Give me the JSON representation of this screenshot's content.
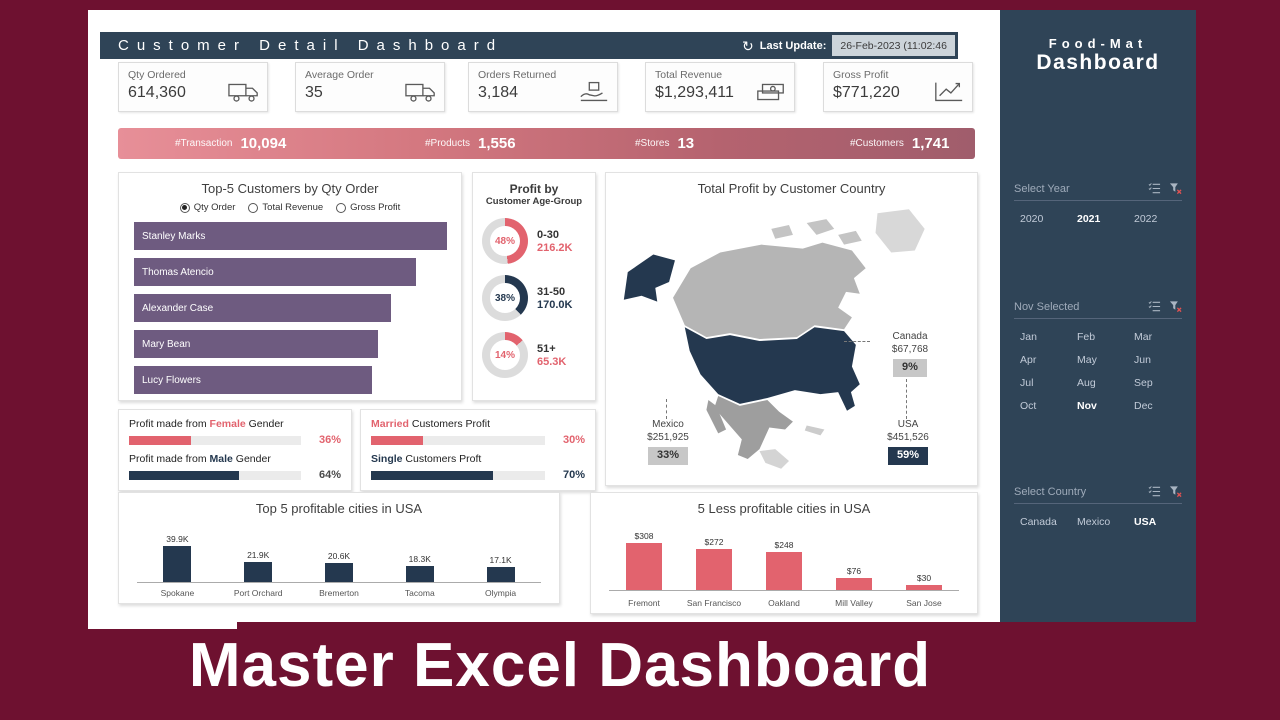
{
  "banner": {
    "caption": "Master Excel Dashboard"
  },
  "header": {
    "title": "Customer Detail Dashboard",
    "last_update_label": "Last Update:",
    "last_update_value": "26-Feb-2023 (11:02:46"
  },
  "kpis": [
    {
      "label": "Qty Ordered",
      "value": "614,360",
      "icon": "delivery-truck-icon"
    },
    {
      "label": "Average Order",
      "value": "35",
      "icon": "shipping-truck-icon"
    },
    {
      "label": "Orders Returned",
      "value": "3,184",
      "icon": "return-hand-icon"
    },
    {
      "label": "Total Revenue",
      "value": "$1,293,411",
      "icon": "revenue-cash-icon"
    },
    {
      "label": "Gross Profit",
      "value": "$771,220",
      "icon": "profit-chart-icon"
    }
  ],
  "stats_band": [
    {
      "label": "#Transaction",
      "value": "10,094"
    },
    {
      "label": "#Products",
      "value": "1,556"
    },
    {
      "label": "#Stores",
      "value": "13"
    },
    {
      "label": "#Customers",
      "value": "1,741"
    }
  ],
  "top5": {
    "title": "Top-5 Customers by Qty Order",
    "options": [
      {
        "label": "Qty Order",
        "selected": true
      },
      {
        "label": "Total Revenue",
        "selected": false
      },
      {
        "label": "Gross Profit",
        "selected": false
      }
    ],
    "bars": [
      {
        "name": "Stanley Marks",
        "pct": 100
      },
      {
        "name": "Thomas Atencio",
        "pct": 90
      },
      {
        "name": "Alexander Case",
        "pct": 82
      },
      {
        "name": "Mary Bean",
        "pct": 78
      },
      {
        "name": "Lucy Flowers",
        "pct": 76
      }
    ]
  },
  "age_group": {
    "title_line1": "Profit by",
    "title_line2": "Customer Age-Group",
    "items": [
      {
        "group": "0-30",
        "value": "216.2K",
        "pct": 48,
        "pct_label": "48%",
        "color": "#e2636e"
      },
      {
        "group": "31-50",
        "value": "170.0K",
        "pct": 38,
        "pct_label": "38%",
        "color": "#24384f"
      },
      {
        "group": "51+",
        "value": "65.3K",
        "pct": 14,
        "pct_label": "14%",
        "color": "#e2636e"
      }
    ]
  },
  "map_panel": {
    "title": "Total Profit by Customer Country",
    "callouts": [
      {
        "country": "Canada",
        "value": "$67,768",
        "pct": "9%"
      },
      {
        "country": "Mexico",
        "value": "$251,925",
        "pct": "33%"
      },
      {
        "country": "USA",
        "value": "$451,526",
        "pct": "59%"
      }
    ]
  },
  "gender_panel": {
    "rows": [
      {
        "prefix": "Profit made from ",
        "highlight": "Female",
        "suffix": " Gender",
        "pct": 36,
        "pct_label": "36%"
      },
      {
        "prefix": "Profit made from ",
        "highlight": "Male",
        "suffix": " Gender",
        "pct": 64,
        "pct_label": "64%"
      }
    ]
  },
  "marital_panel": {
    "rows": [
      {
        "highlight": "Married",
        "rest": " Customers Profit",
        "pct": 30,
        "pct_label": "30%"
      },
      {
        "highlight": "Single",
        "rest": " Customers Proft",
        "pct": 70,
        "pct_label": "70%"
      }
    ]
  },
  "top_cities": {
    "title": "Top 5 profitable cities in USA",
    "bars": [
      {
        "city": "Spokane",
        "label": "39.9K",
        "hpct": 68
      },
      {
        "city": "Port Orchard",
        "label": "21.9K",
        "hpct": 37
      },
      {
        "city": "Bremerton",
        "label": "20.6K",
        "hpct": 35
      },
      {
        "city": "Tacoma",
        "label": "18.3K",
        "hpct": 31
      },
      {
        "city": "Olympia",
        "label": "17.1K",
        "hpct": 29
      }
    ]
  },
  "less_cities": {
    "title": "5 Less profitable cities in USA",
    "bars": [
      {
        "city": "Fremont",
        "label": "$308",
        "hpct": 77
      },
      {
        "city": "San Francisco",
        "label": "$272",
        "hpct": 67
      },
      {
        "city": "Oakland",
        "label": "$248",
        "hpct": 62
      },
      {
        "city": "Mill Valley",
        "label": "$76",
        "hpct": 20
      },
      {
        "city": "San Jose",
        "label": "$30",
        "hpct": 8
      }
    ]
  },
  "sidebar": {
    "brand_line1": "Food-Mat",
    "brand_line2": "Dashboard",
    "slicer_icons": [
      "multi-select-icon",
      "clear-filter-icon"
    ],
    "year_slicer": {
      "title": "Select Year",
      "items": [
        {
          "label": "2020",
          "selected": false
        },
        {
          "label": "2021",
          "selected": true
        },
        {
          "label": "2022",
          "selected": false
        }
      ]
    },
    "month_slicer": {
      "title": "Nov Selected",
      "items": [
        {
          "label": "Jan",
          "selected": false
        },
        {
          "label": "Feb",
          "selected": false
        },
        {
          "label": "Mar",
          "selected": false
        },
        {
          "label": "Apr",
          "selected": false
        },
        {
          "label": "May",
          "selected": false
        },
        {
          "label": "Jun",
          "selected": false
        },
        {
          "label": "Jul",
          "selected": false
        },
        {
          "label": "Aug",
          "selected": false
        },
        {
          "label": "Sep",
          "selected": false
        },
        {
          "label": "Oct",
          "selected": false
        },
        {
          "label": "Nov",
          "selected": true
        },
        {
          "label": "Dec",
          "selected": false
        }
      ]
    },
    "country_slicer": {
      "title": "Select Country",
      "items": [
        {
          "label": "Canada",
          "selected": false
        },
        {
          "label": "Mexico",
          "selected": false
        },
        {
          "label": "USA",
          "selected": true
        }
      ]
    }
  },
  "theme": {
    "maroon": "#6e1130",
    "navy": "#2f4457",
    "bar_navy": "#24384f",
    "accent_red": "#e2636e",
    "purple": "#6e5b80",
    "map_canada": "#b5b5b5",
    "map_mexico": "#9e9e9e",
    "map_usa": "#24384f"
  },
  "chart_data": [
    {
      "type": "bar",
      "orientation": "horizontal",
      "title": "Top-5 Customers by Qty Order",
      "categories": [
        "Stanley Marks",
        "Thomas Atencio",
        "Alexander Case",
        "Mary Bean",
        "Lucy Flowers"
      ],
      "values_pct_of_max": [
        100,
        90,
        82,
        78,
        76
      ],
      "note": "bar lengths estimated from pixels; numeric values not labeled"
    },
    {
      "type": "pie",
      "title": "Profit by Customer Age-Group",
      "categories": [
        "0-30",
        "31-50",
        "51+"
      ],
      "values_pct": [
        48,
        38,
        14
      ],
      "values_label": [
        "216.2K",
        "170.0K",
        "65.3K"
      ]
    },
    {
      "type": "map",
      "title": "Total Profit by Customer Country",
      "categories": [
        "Canada",
        "Mexico",
        "USA"
      ],
      "values": [
        67768,
        251925,
        451526
      ],
      "values_pct": [
        9,
        33,
        59
      ]
    },
    {
      "type": "bar",
      "title": "Profit by Gender",
      "categories": [
        "Female",
        "Male"
      ],
      "values_pct": [
        36,
        64
      ]
    },
    {
      "type": "bar",
      "title": "Profit by Marital Status",
      "categories": [
        "Married",
        "Single"
      ],
      "values_pct": [
        30,
        70
      ]
    },
    {
      "type": "bar",
      "title": "Top 5 profitable cities in USA",
      "categories": [
        "Spokane",
        "Port Orchard",
        "Bremerton",
        "Tacoma",
        "Olympia"
      ],
      "values": [
        39900,
        21900,
        20600,
        18300,
        17100
      ]
    },
    {
      "type": "bar",
      "title": "5 Less profitable cities in USA",
      "categories": [
        "Fremont",
        "San Francisco",
        "Oakland",
        "Mill Valley",
        "San Jose"
      ],
      "values": [
        308,
        272,
        248,
        76,
        30
      ]
    }
  ]
}
